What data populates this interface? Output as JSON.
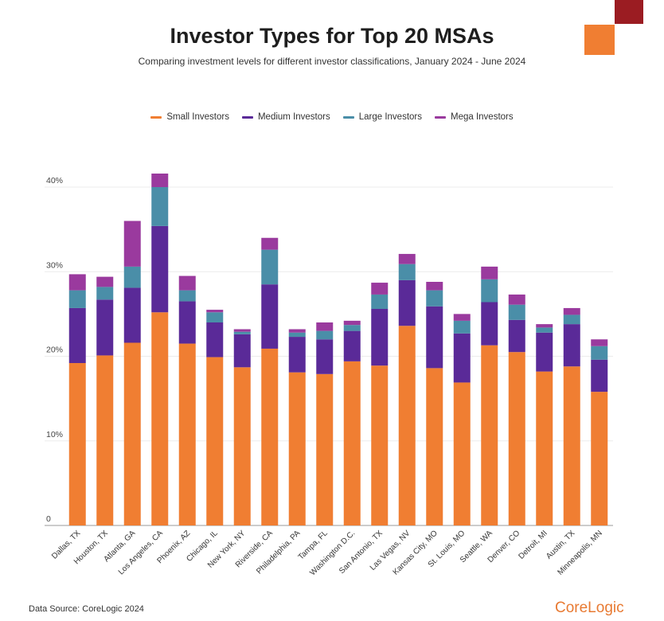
{
  "colors": {
    "small": "#f07e32",
    "medium": "#5a2a98",
    "large": "#4a8ea8",
    "mega": "#9a3a9e",
    "deco_red": "#9b1c22",
    "deco_orange": "#f07e32",
    "brand": "#e87a32"
  },
  "footer": {
    "source": "Data Source: CoreLogic 2024",
    "brand": "CoreLogic"
  },
  "chart_data": {
    "type": "bar",
    "stacked": true,
    "title": "Investor Types for Top 20 MSAs",
    "subtitle": "Comparing investment levels for different investor classifications, January 2024 - June 2024",
    "xlabel": "",
    "ylabel": "",
    "ylim": [
      0,
      40
    ],
    "yticks": [
      0,
      10,
      20,
      30,
      40
    ],
    "ytick_labels": [
      "0",
      "10%",
      "20%",
      "30%",
      "40%"
    ],
    "grid": true,
    "legend_position": "top-center",
    "categories": [
      "Dallas, TX",
      "Houston, TX",
      "Atlanta, GA",
      "Los Angeles, CA",
      "Phoenix, AZ",
      "Chicago, IL",
      "New York, NY",
      "Riverside, CA",
      "Philadelphia, PA",
      "Tampa, FL",
      "Washington D.C.",
      "San Antonio, TX",
      "Las Vegas, NV",
      "Kansas City, MO",
      "St. Louis, MO",
      "Seattle, WA",
      "Denver, CO",
      "Detroit, MI",
      "Austin, TX",
      "Minneapolis, MN"
    ],
    "series": [
      {
        "name": "Small Investors",
        "key": "small",
        "values": [
          19.2,
          20.1,
          21.6,
          25.2,
          21.5,
          19.9,
          18.7,
          20.9,
          18.1,
          17.9,
          19.4,
          18.9,
          23.6,
          18.6,
          16.9,
          21.3,
          20.5,
          18.2,
          18.8,
          15.8
        ]
      },
      {
        "name": "Medium Investors",
        "key": "medium",
        "values": [
          6.5,
          6.6,
          6.5,
          10.2,
          5.0,
          4.1,
          3.9,
          7.6,
          4.2,
          4.1,
          3.6,
          6.7,
          5.4,
          7.3,
          5.8,
          5.1,
          3.8,
          4.6,
          5.0,
          3.8
        ]
      },
      {
        "name": "Large Investors",
        "key": "large",
        "values": [
          2.1,
          1.5,
          2.5,
          4.6,
          1.3,
          1.2,
          0.3,
          4.1,
          0.5,
          1.0,
          0.7,
          1.7,
          1.9,
          1.9,
          1.5,
          2.7,
          1.8,
          0.6,
          1.1,
          1.6
        ]
      },
      {
        "name": "Mega Investors",
        "key": "mega",
        "values": [
          1.9,
          1.2,
          5.4,
          1.6,
          1.7,
          0.3,
          0.3,
          1.4,
          0.4,
          1.0,
          0.5,
          1.4,
          1.2,
          1.0,
          0.8,
          1.5,
          1.2,
          0.4,
          0.8,
          0.8
        ]
      }
    ]
  }
}
